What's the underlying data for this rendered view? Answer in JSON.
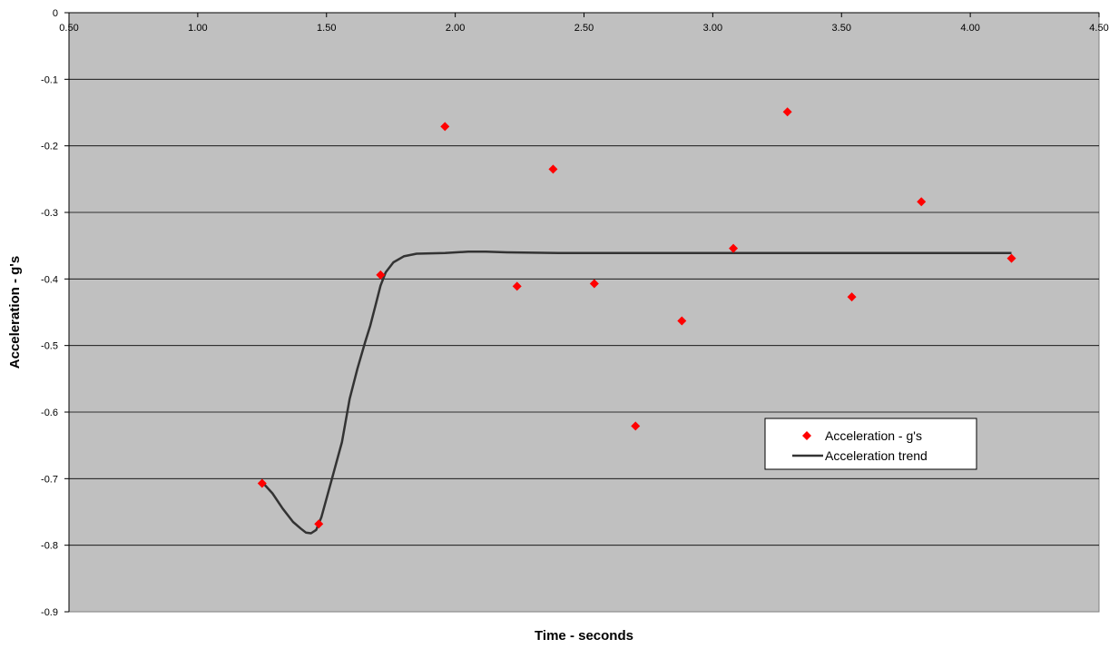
{
  "chart_data": {
    "type": "scatter",
    "xlabel": "Time - seconds",
    "ylabel": "Acceleration - g's",
    "xlim": [
      0.5,
      4.5
    ],
    "ylim": [
      -0.9,
      0
    ],
    "x_ticks": [
      "0.50",
      "1.00",
      "1.50",
      "2.00",
      "2.50",
      "3.00",
      "3.50",
      "4.00",
      "4.50"
    ],
    "x_tick_values": [
      0.5,
      1.0,
      1.5,
      2.0,
      2.5,
      3.0,
      3.5,
      4.0,
      4.5
    ],
    "y_ticks": [
      "0",
      "-0.1",
      "-0.2",
      "-0.3",
      "-0.4",
      "-0.5",
      "-0.6",
      "-0.7",
      "-0.8",
      "-0.9"
    ],
    "y_tick_values": [
      0,
      -0.1,
      -0.2,
      -0.3,
      -0.4,
      -0.5,
      -0.6,
      -0.7,
      -0.8,
      -0.9
    ],
    "x_axis_position": "top",
    "grid": "horizontal",
    "plot_background": "#c0c0c0",
    "legend_position": "lower-right",
    "series": [
      {
        "name": "Acceleration - g's",
        "kind": "scatter",
        "marker": "diamond",
        "color": "#ff0000",
        "x": [
          1.25,
          1.47,
          1.71,
          1.96,
          2.24,
          2.38,
          2.54,
          2.7,
          2.88,
          3.08,
          3.29,
          3.54,
          3.81,
          4.16
        ],
        "y": [
          -0.707,
          -0.768,
          -0.394,
          -0.171,
          -0.411,
          -0.235,
          -0.407,
          -0.621,
          -0.463,
          -0.354,
          -0.149,
          -0.427,
          -0.284,
          -0.369
        ]
      },
      {
        "name": "Acceleration trend",
        "kind": "line",
        "color": "#333333",
        "x": [
          1.25,
          1.29,
          1.33,
          1.37,
          1.4,
          1.42,
          1.44,
          1.46,
          1.48,
          1.52,
          1.56,
          1.59,
          1.62,
          1.65,
          1.67,
          1.69,
          1.71,
          1.73,
          1.76,
          1.8,
          1.85,
          1.96,
          2.05,
          2.12,
          2.2,
          2.4,
          2.8,
          3.2,
          3.6,
          4.0,
          4.16
        ],
        "y": [
          -0.705,
          -0.722,
          -0.745,
          -0.765,
          -0.775,
          -0.781,
          -0.782,
          -0.777,
          -0.758,
          -0.702,
          -0.645,
          -0.58,
          -0.535,
          -0.495,
          -0.47,
          -0.44,
          -0.41,
          -0.39,
          -0.375,
          -0.366,
          -0.362,
          -0.361,
          -0.359,
          -0.359,
          -0.36,
          -0.361,
          -0.361,
          -0.361,
          -0.361,
          -0.361,
          -0.361
        ]
      }
    ]
  }
}
